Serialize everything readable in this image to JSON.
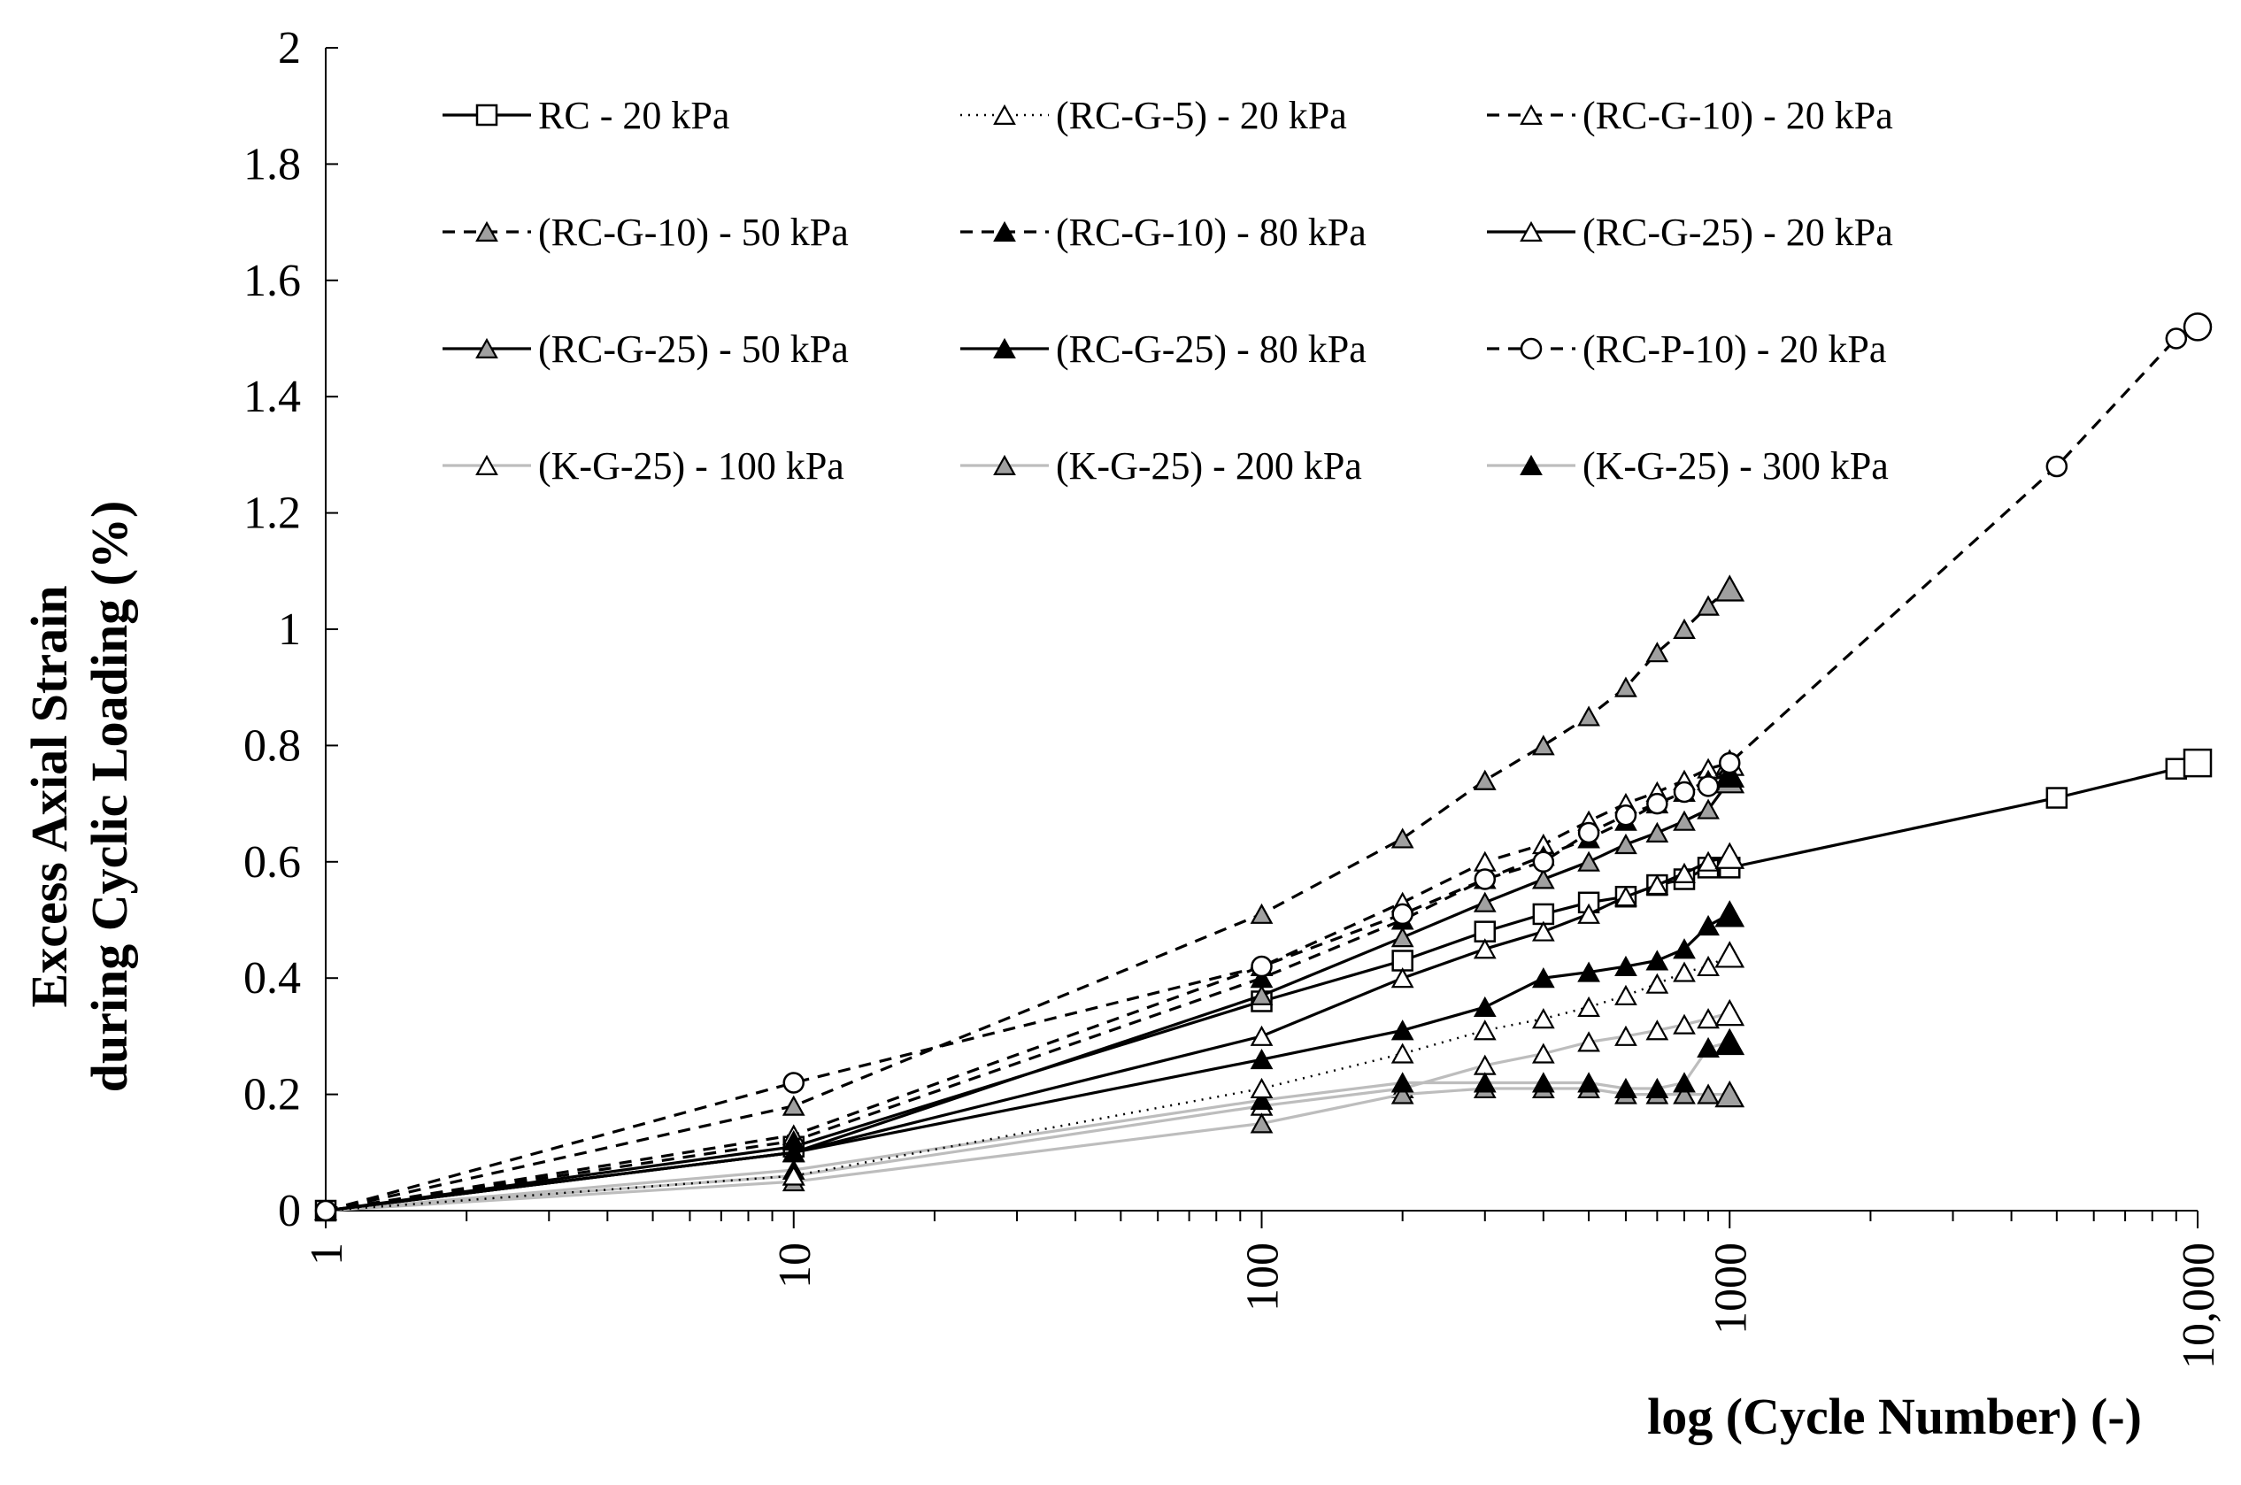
{
  "chart_data": {
    "type": "line",
    "title": "",
    "xlabel": "log (Cycle Number) (-)",
    "ylabel_line1": "Excess Axial Strain",
    "ylabel_line2": "during Cyclic Loading  (%)",
    "x_scale": "log",
    "xlim": [
      1,
      10000
    ],
    "ylim": [
      0,
      2
    ],
    "x_ticks": [
      1,
      10,
      100,
      1000,
      10000
    ],
    "x_tick_labels": [
      "1",
      "10",
      "100",
      "1000",
      "10,000"
    ],
    "y_ticks": [
      0,
      0.2,
      0.4,
      0.6,
      0.8,
      1,
      1.2,
      1.4,
      1.6,
      1.8,
      2
    ],
    "y_tick_labels": [
      "0",
      "0.2",
      "0.4",
      "0.6",
      "0.8",
      "1",
      "1.2",
      "1.4",
      "1.6",
      "1.8",
      "2"
    ],
    "grid": false,
    "legend_position": "top",
    "colors": {
      "black": "#000000",
      "gray_line": "#bdbdbd",
      "gray_fill": "#a0a0a0",
      "white": "#ffffff"
    },
    "series": [
      {
        "name": "RC - 20 kPa",
        "line": "solid",
        "line_color": "#000000",
        "marker": "square",
        "marker_fill": "#ffffff",
        "x": [
          1,
          10,
          100,
          200,
          300,
          400,
          500,
          600,
          700,
          800,
          900,
          1000,
          5000,
          9000,
          10000
        ],
        "y": [
          0,
          0.11,
          0.36,
          0.43,
          0.48,
          0.51,
          0.53,
          0.54,
          0.56,
          0.57,
          0.59,
          0.59,
          0.71,
          0.76,
          0.77
        ]
      },
      {
        "name": "(RC-G-5) - 20 kPa",
        "line": "dotted",
        "line_color": "#000000",
        "marker": "triangle",
        "marker_fill": "#ffffff",
        "x": [
          1,
          10,
          100,
          200,
          300,
          400,
          500,
          600,
          700,
          800,
          900,
          1000
        ],
        "y": [
          0,
          0.06,
          0.21,
          0.27,
          0.31,
          0.33,
          0.35,
          0.37,
          0.39,
          0.41,
          0.42,
          0.44
        ]
      },
      {
        "name": "(RC-G-10) - 20 kPa",
        "line": "dashed",
        "line_color": "#000000",
        "marker": "triangle",
        "marker_fill": "#ffffff",
        "x": [
          1,
          10,
          100,
          200,
          300,
          400,
          500,
          600,
          700,
          800,
          900,
          1000
        ],
        "y": [
          0,
          0.13,
          0.42,
          0.53,
          0.6,
          0.63,
          0.67,
          0.7,
          0.72,
          0.74,
          0.76,
          0.77
        ]
      },
      {
        "name": "(RC-G-10) - 50 kPa",
        "line": "dashed",
        "line_color": "#000000",
        "marker": "triangle",
        "marker_fill": "#a0a0a0",
        "x": [
          1,
          10,
          100,
          200,
          300,
          400,
          500,
          600,
          700,
          800,
          900,
          1000
        ],
        "y": [
          0,
          0.18,
          0.51,
          0.64,
          0.74,
          0.8,
          0.85,
          0.9,
          0.96,
          1.0,
          1.04,
          1.07
        ]
      },
      {
        "name": "(RC-G-10) - 80 kPa",
        "line": "dashed",
        "line_color": "#000000",
        "marker": "triangle",
        "marker_fill": "#000000",
        "x": [
          1,
          10,
          100,
          200,
          300,
          400,
          500,
          600,
          700,
          800,
          900,
          1000
        ],
        "y": [
          0,
          0.12,
          0.4,
          0.5,
          0.57,
          0.61,
          0.64,
          0.67,
          0.7,
          0.72,
          0.74,
          0.75
        ]
      },
      {
        "name": "(RC-G-25) - 20 kPa",
        "line": "solid",
        "line_color": "#000000",
        "marker": "triangle",
        "marker_fill": "#ffffff",
        "x": [
          1,
          10,
          100,
          200,
          300,
          400,
          500,
          600,
          700,
          800,
          900,
          1000
        ],
        "y": [
          0,
          0.1,
          0.3,
          0.4,
          0.45,
          0.48,
          0.51,
          0.54,
          0.56,
          0.58,
          0.6,
          0.61
        ]
      },
      {
        "name": "(RC-G-25) - 50 kPa",
        "line": "solid",
        "line_color": "#000000",
        "marker": "triangle",
        "marker_fill": "#a0a0a0",
        "x": [
          1,
          10,
          100,
          200,
          300,
          400,
          500,
          600,
          700,
          800,
          900,
          1000
        ],
        "y": [
          0,
          0.1,
          0.37,
          0.47,
          0.53,
          0.57,
          0.6,
          0.63,
          0.65,
          0.67,
          0.69,
          0.74
        ]
      },
      {
        "name": "(RC-G-25) - 80 kPa",
        "line": "solid",
        "line_color": "#000000",
        "marker": "triangle",
        "marker_fill": "#000000",
        "x": [
          1,
          10,
          100,
          200,
          300,
          400,
          500,
          600,
          700,
          800,
          900,
          1000
        ],
        "y": [
          0,
          0.1,
          0.26,
          0.31,
          0.35,
          0.4,
          0.41,
          0.42,
          0.43,
          0.45,
          0.49,
          0.51
        ]
      },
      {
        "name": "(RC-P-10) - 20 kPa",
        "line": "dashed",
        "line_color": "#000000",
        "marker": "circle",
        "marker_fill": "#ffffff",
        "x": [
          1,
          10,
          100,
          200,
          300,
          400,
          500,
          600,
          700,
          800,
          900,
          1000,
          5000,
          9000,
          10000
        ],
        "y": [
          0,
          0.22,
          0.42,
          0.51,
          0.57,
          0.6,
          0.65,
          0.68,
          0.7,
          0.72,
          0.73,
          0.77,
          1.28,
          1.5,
          1.52
        ]
      },
      {
        "name": "(K-G-25) - 100 kPa",
        "line": "solid",
        "line_color": "#bdbdbd",
        "marker": "triangle",
        "marker_fill": "#ffffff",
        "x": [
          1,
          10,
          100,
          200,
          300,
          400,
          500,
          600,
          700,
          800,
          900,
          1000
        ],
        "y": [
          0,
          0.06,
          0.18,
          0.21,
          0.25,
          0.27,
          0.29,
          0.3,
          0.31,
          0.32,
          0.33,
          0.34
        ]
      },
      {
        "name": "(K-G-25) - 200 kPa",
        "line": "solid",
        "line_color": "#bdbdbd",
        "marker": "triangle",
        "marker_fill": "#a0a0a0",
        "x": [
          1,
          10,
          100,
          200,
          300,
          400,
          500,
          600,
          700,
          800,
          900,
          1000
        ],
        "y": [
          0,
          0.05,
          0.15,
          0.2,
          0.21,
          0.21,
          0.21,
          0.2,
          0.2,
          0.2,
          0.2,
          0.2
        ]
      },
      {
        "name": "(K-G-25) - 300 kPa",
        "line": "solid",
        "line_color": "#bdbdbd",
        "marker": "triangle",
        "marker_fill": "#000000",
        "x": [
          1,
          10,
          100,
          200,
          300,
          400,
          500,
          600,
          700,
          800,
          900,
          1000
        ],
        "y": [
          0,
          0.07,
          0.19,
          0.22,
          0.22,
          0.22,
          0.22,
          0.21,
          0.21,
          0.22,
          0.28,
          0.29
        ]
      }
    ]
  }
}
